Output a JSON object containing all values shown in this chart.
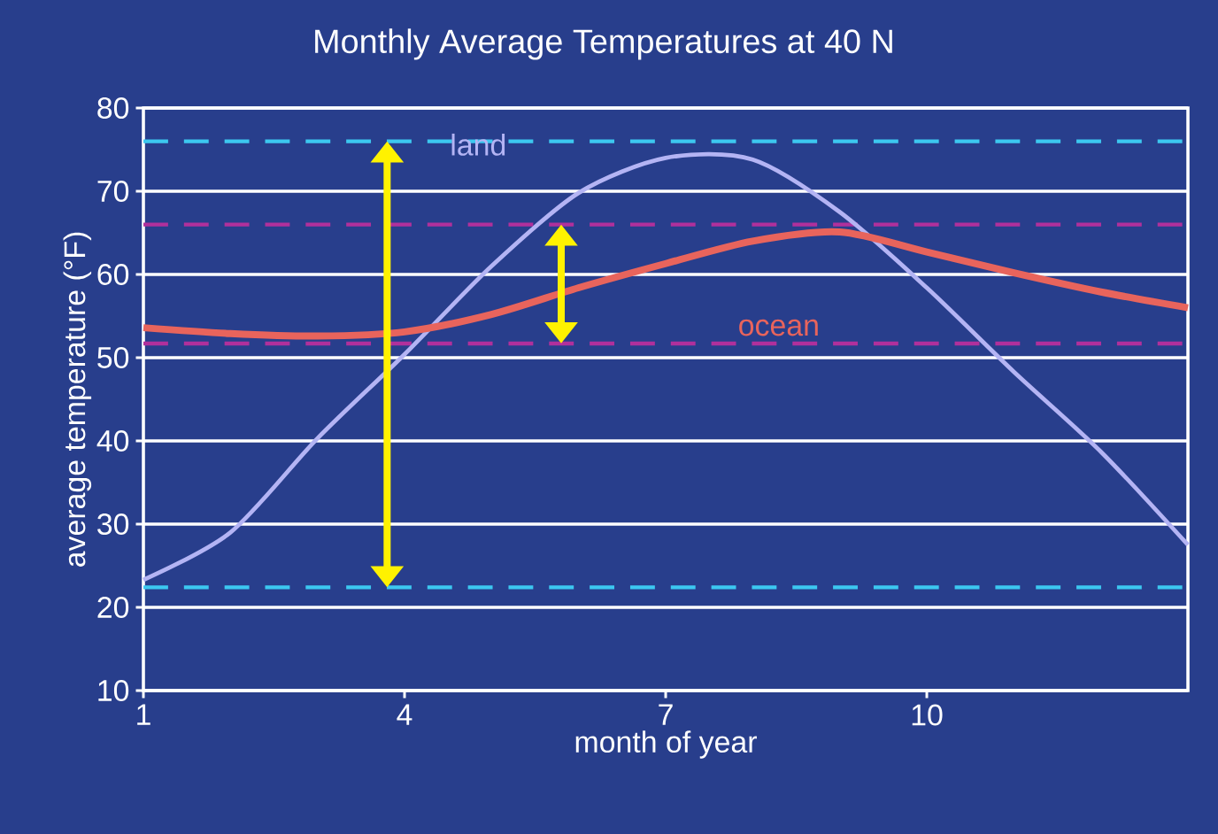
{
  "chart_data": {
    "type": "line",
    "title": "Monthly Average Temperatures at 40 N",
    "xlabel": "month of year",
    "ylabel": "average temperature (°F)",
    "x": [
      1,
      2,
      3,
      4,
      5,
      6,
      7,
      8,
      9,
      10,
      11,
      12,
      13
    ],
    "series": [
      {
        "name": "land",
        "color": "#b4b4f4",
        "values": [
          23.3,
          29,
          40.3,
          50.4,
          61,
          69.8,
          74,
          73.8,
          67.5,
          58.4,
          48.3,
          38.7,
          27.5
        ]
      },
      {
        "name": "ocean",
        "color": "#e8645c",
        "values": [
          53.6,
          52.9,
          52.6,
          53.1,
          55.2,
          58.4,
          61.3,
          64,
          65.1,
          62.7,
          60.2,
          57.9,
          56
        ]
      }
    ],
    "xlim": [
      1,
      13
    ],
    "ylim": [
      10,
      80
    ],
    "xticks": [
      1,
      4,
      7,
      10
    ],
    "yticks": [
      10,
      20,
      30,
      40,
      50,
      60,
      70,
      80
    ],
    "grid": "y",
    "line_style": "solid",
    "ref_lines": [
      {
        "axis": "y",
        "value": 76,
        "color": "#3cc8f0",
        "line_style": "dashed"
      },
      {
        "axis": "y",
        "value": 22.4,
        "color": "#3cc8f0",
        "line_style": "dashed"
      },
      {
        "axis": "y",
        "value": 66,
        "color": "#b0309c",
        "line_style": "dashed"
      },
      {
        "axis": "y",
        "value": 51.7,
        "color": "#b0309c",
        "line_style": "dashed"
      }
    ]
  }
}
